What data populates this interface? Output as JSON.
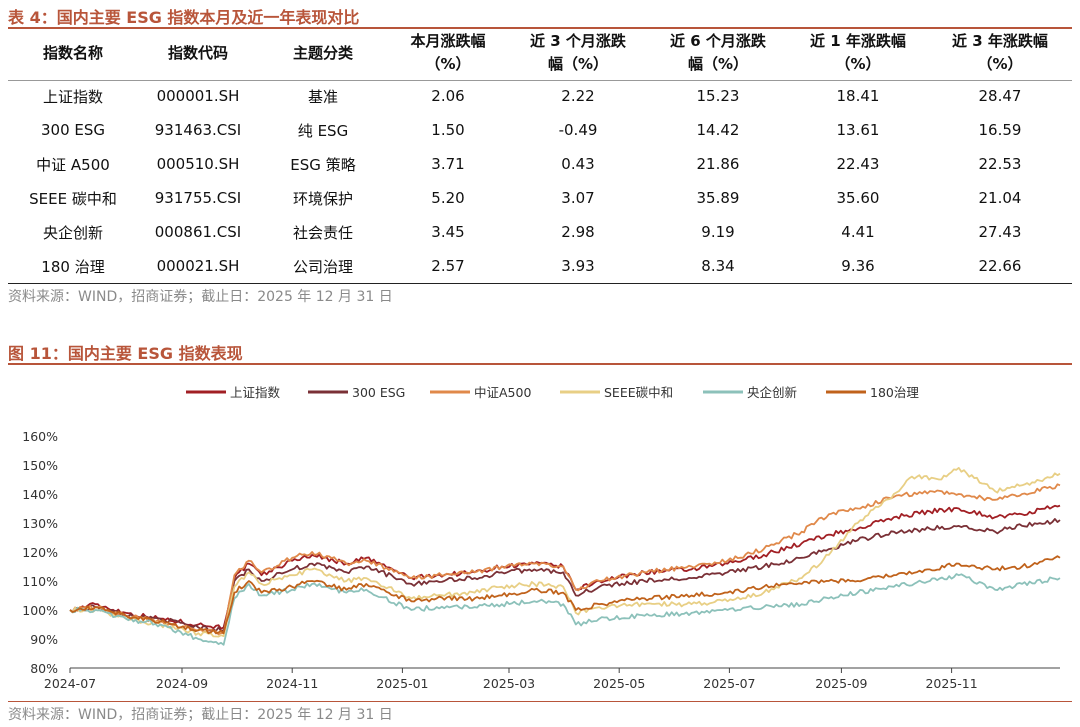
{
  "table": {
    "title": "表 4：国内主要 ESG 指数本月及近一年表现对比",
    "headers": [
      "指数名称",
      "指数代码",
      "主题分类",
      "本月涨跌幅\n（%）",
      "近 3 个月涨跌\n幅（%）",
      "近 6 个月涨跌\n幅（%）",
      "近 1 年涨跌幅\n（%）",
      "近 3 年涨跌幅\n（%）"
    ],
    "rows": [
      [
        "上证指数",
        "000001.SH",
        "基准",
        "2.06",
        "2.22",
        "15.23",
        "18.41",
        "28.47"
      ],
      [
        "300 ESG",
        "931463.CSI",
        "纯 ESG",
        "1.50",
        "-0.49",
        "14.42",
        "13.61",
        "16.59"
      ],
      [
        "中证 A500",
        "000510.SH",
        "ESG 策略",
        "3.71",
        "0.43",
        "21.86",
        "22.43",
        "22.53"
      ],
      [
        "SEEE 碳中和",
        "931755.CSI",
        "环境保护",
        "5.20",
        "3.07",
        "35.89",
        "35.60",
        "21.04"
      ],
      [
        "央企创新",
        "000861.CSI",
        "社会责任",
        "3.45",
        "2.98",
        "9.19",
        "4.41",
        "27.43"
      ],
      [
        "180 治理",
        "000021.SH",
        "公司治理",
        "2.57",
        "3.93",
        "8.34",
        "9.36",
        "22.66"
      ]
    ],
    "source": "资料来源：WIND，招商证券；截止日：2025 年 12 月 31 日"
  },
  "figure": {
    "title": "图 11：国内主要 ESG 指数表现",
    "source": "资料来源：WIND，招商证券；截止日：2025 年 12 月 31 日"
  },
  "chart_data": {
    "type": "line",
    "title": "",
    "xlabel": "",
    "ylabel": "",
    "x_ticks": [
      "2024-07",
      "2024-09",
      "2024-11",
      "2025-01",
      "2025-03",
      "2025-05",
      "2025-07",
      "2025-09",
      "2025-11"
    ],
    "y_ticks": [
      "80%",
      "90%",
      "100%",
      "110%",
      "120%",
      "130%",
      "140%",
      "150%",
      "160%"
    ],
    "ylim": [
      80,
      160
    ],
    "xlim": [
      "2024-07-01",
      "2025-12-31"
    ],
    "grid": false,
    "legend_position": "top",
    "series": [
      {
        "name": "上证指数",
        "color": "#a11f24",
        "points": [
          [
            "2024-07-01",
            100
          ],
          [
            "2024-07-15",
            102
          ],
          [
            "2024-08-01",
            99
          ],
          [
            "2024-08-20",
            97
          ],
          [
            "2024-09-10",
            95
          ],
          [
            "2024-09-24",
            94
          ],
          [
            "2024-09-30",
            111
          ],
          [
            "2024-10-08",
            116
          ],
          [
            "2024-10-15",
            112
          ],
          [
            "2024-11-01",
            117
          ],
          [
            "2024-11-12",
            119
          ],
          [
            "2024-12-01",
            116
          ],
          [
            "2024-12-12",
            118
          ],
          [
            "2025-01-06",
            111
          ],
          [
            "2025-01-20",
            112
          ],
          [
            "2025-02-10",
            113
          ],
          [
            "2025-02-25",
            115
          ],
          [
            "2025-03-15",
            116
          ],
          [
            "2025-03-31",
            115
          ],
          [
            "2025-04-07",
            107
          ],
          [
            "2025-04-20",
            110
          ],
          [
            "2025-05-15",
            113
          ],
          [
            "2025-06-10",
            114
          ],
          [
            "2025-06-30",
            116
          ],
          [
            "2025-07-20",
            119
          ],
          [
            "2025-08-10",
            123
          ],
          [
            "2025-08-25",
            126
          ],
          [
            "2025-09-10",
            128
          ],
          [
            "2025-09-30",
            132
          ],
          [
            "2025-10-20",
            134
          ],
          [
            "2025-11-05",
            135
          ],
          [
            "2025-11-25",
            132
          ],
          [
            "2025-12-10",
            133
          ],
          [
            "2025-12-31",
            136
          ]
        ]
      },
      {
        "name": "300 ESG",
        "color": "#7a3036",
        "points": [
          [
            "2024-07-01",
            100
          ],
          [
            "2024-07-15",
            101
          ],
          [
            "2024-08-01",
            98
          ],
          [
            "2024-08-20",
            97
          ],
          [
            "2024-09-10",
            94
          ],
          [
            "2024-09-24",
            93
          ],
          [
            "2024-09-30",
            110
          ],
          [
            "2024-10-08",
            114
          ],
          [
            "2024-10-15",
            110
          ],
          [
            "2024-11-01",
            114
          ],
          [
            "2024-11-12",
            116
          ],
          [
            "2024-12-01",
            113
          ],
          [
            "2024-12-12",
            115
          ],
          [
            "2025-01-06",
            109
          ],
          [
            "2025-01-20",
            110
          ],
          [
            "2025-02-10",
            111
          ],
          [
            "2025-02-25",
            113
          ],
          [
            "2025-03-15",
            114
          ],
          [
            "2025-03-31",
            113
          ],
          [
            "2025-04-07",
            105
          ],
          [
            "2025-04-20",
            108
          ],
          [
            "2025-05-15",
            110
          ],
          [
            "2025-06-10",
            111
          ],
          [
            "2025-06-30",
            113
          ],
          [
            "2025-07-20",
            115
          ],
          [
            "2025-08-10",
            118
          ],
          [
            "2025-08-25",
            121
          ],
          [
            "2025-09-10",
            124
          ],
          [
            "2025-09-30",
            127
          ],
          [
            "2025-10-20",
            128
          ],
          [
            "2025-11-05",
            129
          ],
          [
            "2025-11-25",
            127
          ],
          [
            "2025-12-10",
            129
          ],
          [
            "2025-12-31",
            131
          ]
        ]
      },
      {
        "name": "中证A500",
        "color": "#e0894a",
        "points": [
          [
            "2024-07-01",
            100
          ],
          [
            "2024-07-15",
            101
          ],
          [
            "2024-08-01",
            98
          ],
          [
            "2024-08-20",
            96
          ],
          [
            "2024-09-10",
            93
          ],
          [
            "2024-09-24",
            92
          ],
          [
            "2024-09-30",
            112
          ],
          [
            "2024-10-08",
            117
          ],
          [
            "2024-10-15",
            113
          ],
          [
            "2024-11-01",
            118
          ],
          [
            "2024-11-12",
            120
          ],
          [
            "2024-12-01",
            116
          ],
          [
            "2024-12-12",
            117
          ],
          [
            "2025-01-06",
            111
          ],
          [
            "2025-01-20",
            112
          ],
          [
            "2025-02-10",
            113
          ],
          [
            "2025-02-25",
            115
          ],
          [
            "2025-03-15",
            116
          ],
          [
            "2025-03-31",
            115
          ],
          [
            "2025-04-07",
            107
          ],
          [
            "2025-04-20",
            110
          ],
          [
            "2025-05-15",
            113
          ],
          [
            "2025-06-10",
            115
          ],
          [
            "2025-06-30",
            117
          ],
          [
            "2025-07-20",
            121
          ],
          [
            "2025-08-10",
            127
          ],
          [
            "2025-08-25",
            133
          ],
          [
            "2025-09-10",
            135
          ],
          [
            "2025-09-30",
            139
          ],
          [
            "2025-10-20",
            141
          ],
          [
            "2025-11-05",
            140
          ],
          [
            "2025-11-25",
            138
          ],
          [
            "2025-12-10",
            140
          ],
          [
            "2025-12-31",
            143
          ]
        ]
      },
      {
        "name": "SEEE碳中和",
        "color": "#e8cf85",
        "points": [
          [
            "2024-07-01",
            100
          ],
          [
            "2024-07-15",
            100
          ],
          [
            "2024-08-01",
            97
          ],
          [
            "2024-08-20",
            95
          ],
          [
            "2024-09-10",
            92
          ],
          [
            "2024-09-24",
            91
          ],
          [
            "2024-09-30",
            108
          ],
          [
            "2024-10-08",
            113
          ],
          [
            "2024-10-15",
            109
          ],
          [
            "2024-11-01",
            112
          ],
          [
            "2024-11-12",
            114
          ],
          [
            "2024-12-01",
            110
          ],
          [
            "2024-12-12",
            111
          ],
          [
            "2025-01-06",
            104
          ],
          [
            "2025-01-20",
            105
          ],
          [
            "2025-02-10",
            106
          ],
          [
            "2025-02-25",
            108
          ],
          [
            "2025-03-15",
            109
          ],
          [
            "2025-03-31",
            108
          ],
          [
            "2025-04-07",
            99
          ],
          [
            "2025-04-20",
            101
          ],
          [
            "2025-05-15",
            102
          ],
          [
            "2025-06-10",
            102
          ],
          [
            "2025-06-30",
            103
          ],
          [
            "2025-07-20",
            106
          ],
          [
            "2025-08-10",
            111
          ],
          [
            "2025-08-25",
            119
          ],
          [
            "2025-09-10",
            130
          ],
          [
            "2025-09-30",
            140
          ],
          [
            "2025-10-10",
            146
          ],
          [
            "2025-10-25",
            145
          ],
          [
            "2025-11-05",
            149
          ],
          [
            "2025-11-25",
            141
          ],
          [
            "2025-12-10",
            143
          ],
          [
            "2025-12-31",
            147
          ]
        ]
      },
      {
        "name": "央企创新",
        "color": "#8cc1ba",
        "points": [
          [
            "2024-07-01",
            100
          ],
          [
            "2024-07-15",
            100
          ],
          [
            "2024-08-01",
            97
          ],
          [
            "2024-08-20",
            95
          ],
          [
            "2024-09-10",
            90
          ],
          [
            "2024-09-24",
            88
          ],
          [
            "2024-09-30",
            104
          ],
          [
            "2024-10-08",
            109
          ],
          [
            "2024-10-15",
            105
          ],
          [
            "2024-11-01",
            107
          ],
          [
            "2024-11-12",
            109
          ],
          [
            "2024-12-01",
            106
          ],
          [
            "2024-12-12",
            107
          ],
          [
            "2025-01-06",
            100
          ],
          [
            "2025-01-20",
            101
          ],
          [
            "2025-02-10",
            101
          ],
          [
            "2025-02-25",
            102
          ],
          [
            "2025-03-15",
            103
          ],
          [
            "2025-03-31",
            102
          ],
          [
            "2025-04-07",
            95
          ],
          [
            "2025-04-20",
            97
          ],
          [
            "2025-05-15",
            98
          ],
          [
            "2025-06-10",
            99
          ],
          [
            "2025-06-30",
            100
          ],
          [
            "2025-07-20",
            101
          ],
          [
            "2025-08-10",
            102
          ],
          [
            "2025-08-25",
            104
          ],
          [
            "2025-09-10",
            106
          ],
          [
            "2025-09-30",
            108
          ],
          [
            "2025-10-20",
            110
          ],
          [
            "2025-11-05",
            112
          ],
          [
            "2025-11-25",
            107
          ],
          [
            "2025-12-10",
            109
          ],
          [
            "2025-12-31",
            111
          ]
        ]
      },
      {
        "name": "180治理",
        "color": "#c0621b",
        "points": [
          [
            "2024-07-01",
            100
          ],
          [
            "2024-07-15",
            101
          ],
          [
            "2024-08-01",
            98
          ],
          [
            "2024-08-20",
            96
          ],
          [
            "2024-09-10",
            93
          ],
          [
            "2024-09-24",
            92
          ],
          [
            "2024-09-30",
            106
          ],
          [
            "2024-10-08",
            110
          ],
          [
            "2024-10-15",
            106
          ],
          [
            "2024-11-01",
            108
          ],
          [
            "2024-11-12",
            110
          ],
          [
            "2024-12-01",
            107
          ],
          [
            "2024-12-12",
            109
          ],
          [
            "2025-01-06",
            103
          ],
          [
            "2025-01-20",
            104
          ],
          [
            "2025-02-10",
            104
          ],
          [
            "2025-02-25",
            105
          ],
          [
            "2025-03-15",
            107
          ],
          [
            "2025-03-31",
            106
          ],
          [
            "2025-04-07",
            100
          ],
          [
            "2025-04-20",
            102
          ],
          [
            "2025-05-15",
            104
          ],
          [
            "2025-06-10",
            105
          ],
          [
            "2025-06-30",
            106
          ],
          [
            "2025-07-20",
            108
          ],
          [
            "2025-08-10",
            109
          ],
          [
            "2025-08-25",
            110
          ],
          [
            "2025-09-10",
            110
          ],
          [
            "2025-09-30",
            112
          ],
          [
            "2025-10-20",
            114
          ],
          [
            "2025-11-05",
            116
          ],
          [
            "2025-11-25",
            114
          ],
          [
            "2025-12-10",
            115
          ],
          [
            "2025-12-31",
            118
          ]
        ]
      }
    ]
  }
}
